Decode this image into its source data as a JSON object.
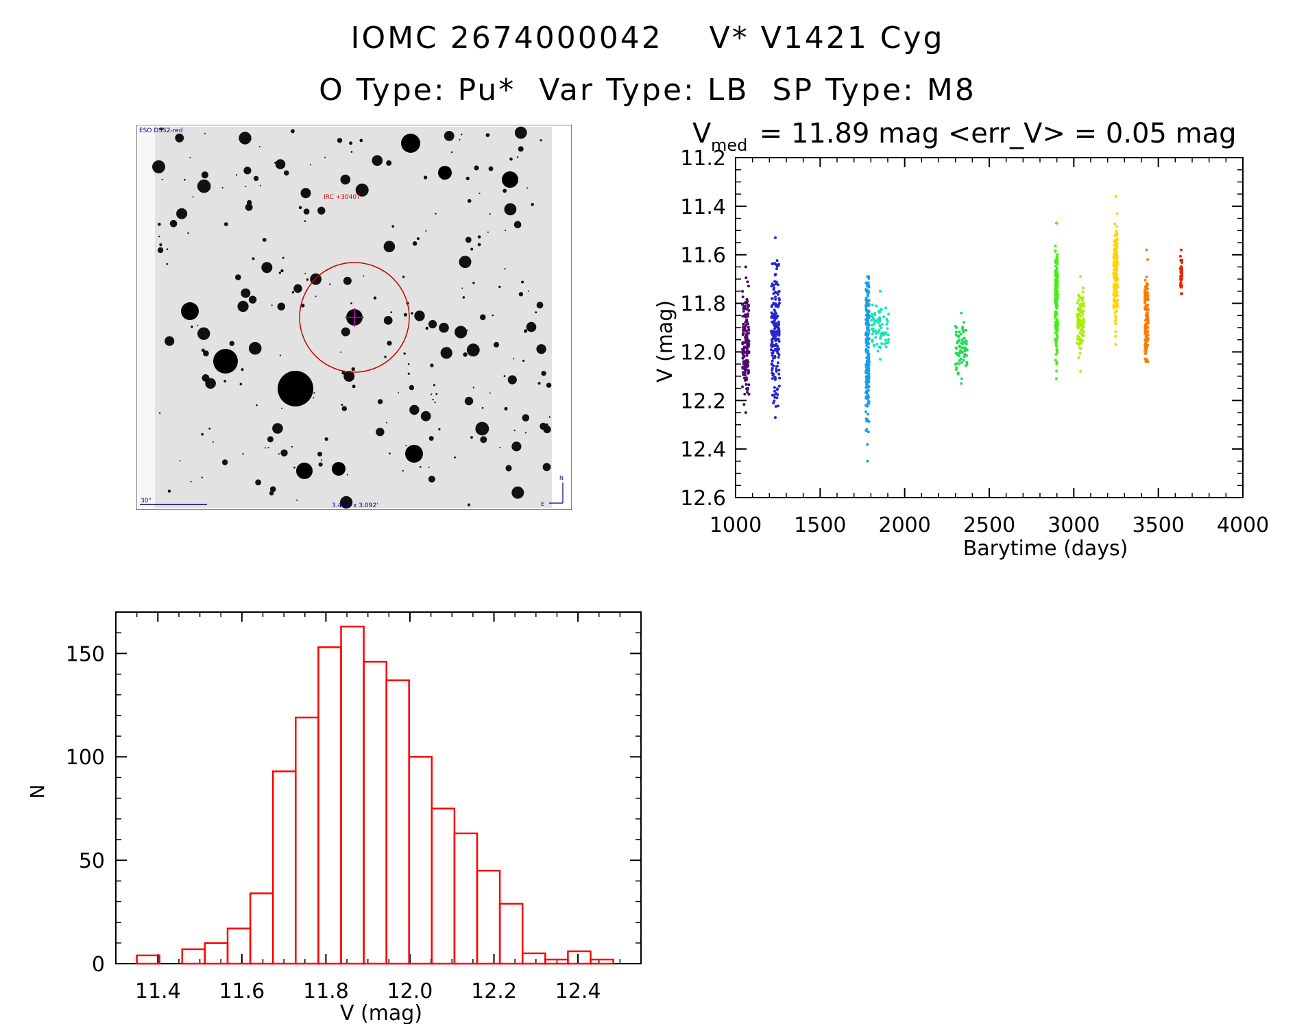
{
  "header": {
    "line1": "IOMC 2674000042    V* V1421 Cyg",
    "line2": "O Type: Pu*  Var Type: LB  SP Type: M8"
  },
  "finder_chart": {
    "top_left_label": "ESO DSS2-red",
    "target_label": "IRC +30407",
    "scale_label": "30\"",
    "size_label": "3.487' x 3.092'",
    "north_label": "N",
    "east_label": "E"
  },
  "chart_data": [
    {
      "type": "scatter",
      "title_main": "V",
      "title_sub": "med",
      "title_rest": " = 11.89 mag <err_V> = 0.05 mag",
      "xlabel": "Barytime (days)",
      "ylabel": "V (mag)",
      "xlim": [
        1000,
        4000
      ],
      "ylim": [
        12.6,
        11.2
      ],
      "y_inverted": true,
      "xticks": [
        1000,
        1500,
        2000,
        2500,
        3000,
        3500,
        4000
      ],
      "yticks": [
        "11.2",
        "11.4",
        "11.6",
        "11.8",
        "12.0",
        "12.2",
        "12.4",
        "12.6"
      ],
      "series": [
        {
          "name": "season 1",
          "color": "#4b0c6e",
          "x": [
            1040,
            1080
          ],
          "y": [
            11.65,
            12.25
          ],
          "center": 11.97
        },
        {
          "name": "season 2",
          "color": "#2626cc",
          "x": [
            1210,
            1260
          ],
          "y": [
            11.53,
            12.27
          ],
          "center": 11.92
        },
        {
          "name": "season 3",
          "color": "#1a9ee6",
          "x": [
            1770,
            1790
          ],
          "y": [
            11.69,
            12.45
          ],
          "center": 11.95
        },
        {
          "name": "season 4",
          "color": "#11e6b4",
          "x": [
            1800,
            1910
          ],
          "y": [
            11.75,
            12.03
          ],
          "center": 11.9
        },
        {
          "name": "season 5",
          "color": "#22dd55",
          "x": [
            2300,
            2370
          ],
          "y": [
            11.84,
            12.13
          ],
          "center": 11.98
        },
        {
          "name": "season 6",
          "color": "#44ee11",
          "x": [
            2890,
            2905
          ],
          "y": [
            11.47,
            12.11
          ],
          "center": 11.8
        },
        {
          "name": "season 7",
          "color": "#aaee00",
          "x": [
            3020,
            3060
          ],
          "y": [
            11.69,
            12.08
          ],
          "center": 11.88
        },
        {
          "name": "season 8",
          "color": "#ffd400",
          "x": [
            3235,
            3260
          ],
          "y": [
            11.36,
            11.97
          ],
          "center": 11.68
        },
        {
          "name": "season 9",
          "color": "#ff7a00",
          "x": [
            3420,
            3440
          ],
          "y": [
            11.58,
            12.04
          ],
          "center": 11.88
        },
        {
          "name": "season 10",
          "color": "#ee2200",
          "x": [
            3630,
            3640
          ],
          "y": [
            11.58,
            11.76
          ],
          "center": 11.68
        }
      ]
    },
    {
      "type": "bar",
      "xlabel": "V (mag)",
      "ylabel": "N",
      "xlim": [
        11.3,
        12.55
      ],
      "ylim": [
        0,
        170
      ],
      "xticks": [
        "11.4",
        "11.6",
        "11.8",
        "12.0",
        "12.2",
        "12.4"
      ],
      "yticks": [
        "0",
        "50",
        "100",
        "150"
      ],
      "bar_color": "#ff0000",
      "bin_width": 0.054,
      "bins": [
        {
          "left": 11.35,
          "count": 4
        },
        {
          "left": 11.404,
          "count": 0
        },
        {
          "left": 11.458,
          "count": 7
        },
        {
          "left": 11.512,
          "count": 10
        },
        {
          "left": 11.566,
          "count": 17
        },
        {
          "left": 11.62,
          "count": 34
        },
        {
          "left": 11.674,
          "count": 93
        },
        {
          "left": 11.728,
          "count": 119
        },
        {
          "left": 11.782,
          "count": 153
        },
        {
          "left": 11.836,
          "count": 163
        },
        {
          "left": 11.89,
          "count": 146
        },
        {
          "left": 11.944,
          "count": 137
        },
        {
          "left": 11.998,
          "count": 100
        },
        {
          "left": 12.052,
          "count": 75
        },
        {
          "left": 12.106,
          "count": 63
        },
        {
          "left": 12.16,
          "count": 45
        },
        {
          "left": 12.214,
          "count": 29
        },
        {
          "left": 12.268,
          "count": 5
        },
        {
          "left": 12.322,
          "count": 2
        },
        {
          "left": 12.376,
          "count": 6
        },
        {
          "left": 12.43,
          "count": 2
        }
      ]
    }
  ]
}
